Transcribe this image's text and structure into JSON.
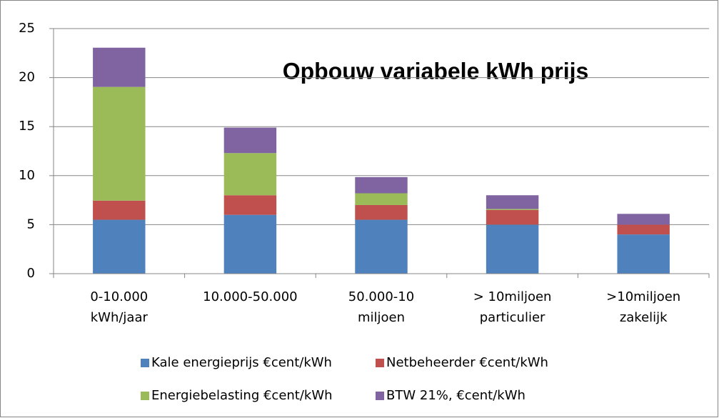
{
  "chart_data": {
    "type": "stacked_bar",
    "title": "Opbouw variabele kWh prijs",
    "categories": [
      [
        "0-10.000",
        "kWh/jaar"
      ],
      [
        "10.000-50.000"
      ],
      [
        "50.000-10",
        "miljoen"
      ],
      [
        "> 10miljoen",
        "particulier"
      ],
      [
        ">10miljoen",
        "zakelijk"
      ]
    ],
    "series": [
      {
        "name": "Kale energieprijs €cent/kWh",
        "color": "#4f81bd",
        "values": [
          5.5,
          6.0,
          5.5,
          5.0,
          4.0
        ]
      },
      {
        "name": "Netbeheerder €cent/kWh",
        "color": "#c0504d",
        "values": [
          1.95,
          2.0,
          1.5,
          1.5,
          1.0
        ]
      },
      {
        "name": "Energiebelasting €cent/kWh",
        "color": "#9bbb59",
        "values": [
          11.6,
          4.3,
          1.2,
          0.1,
          0
        ]
      },
      {
        "name": "BTW 21%, €cent/kWh",
        "color": "#8064a2",
        "values": [
          4.0,
          2.6,
          1.65,
          1.4,
          1.1
        ]
      }
    ],
    "ylim": [
      0,
      25
    ],
    "yticks": [
      0,
      5,
      10,
      15,
      20,
      25
    ],
    "grid": true,
    "legend": "bottom"
  }
}
